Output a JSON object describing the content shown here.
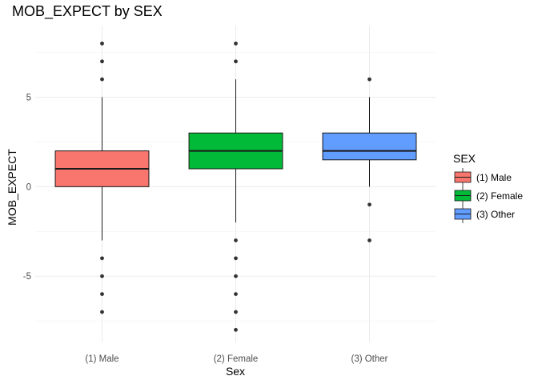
{
  "chart_data": {
    "type": "boxplot",
    "title": "MOB_EXPECT by SEX",
    "xlabel": "Sex",
    "ylabel": "MOB_EXPECT",
    "ylim": [
      -8.7,
      9.0
    ],
    "y_ticks": [
      -5,
      0,
      5
    ],
    "y_tick_labels": [
      "-5",
      "0",
      "5"
    ],
    "grid": "on",
    "legend": {
      "title": "SEX",
      "position": "right"
    },
    "categories": [
      "(1) Male",
      "(2) Female",
      "(3) Other"
    ],
    "series": [
      {
        "name": "(1) Male",
        "color": "#F8766D",
        "whisker_low": -3,
        "q1": 0,
        "median": 1,
        "q3": 2,
        "whisker_high": 5,
        "outliers": [
          8,
          7,
          6,
          -4,
          -5,
          -6,
          -7
        ]
      },
      {
        "name": "(2) Female",
        "color": "#00BA38",
        "whisker_low": -2,
        "q1": 1,
        "median": 2,
        "q3": 3,
        "whisker_high": 6,
        "outliers": [
          8,
          7,
          -3,
          -4,
          -5,
          -6,
          -7,
          -8
        ]
      },
      {
        "name": "(3) Other",
        "color": "#619CFF",
        "whisker_low": 0,
        "q1": 1.5,
        "median": 2,
        "q3": 3,
        "whisker_high": 5,
        "outliers": [
          6,
          -1,
          -3
        ]
      }
    ]
  }
}
